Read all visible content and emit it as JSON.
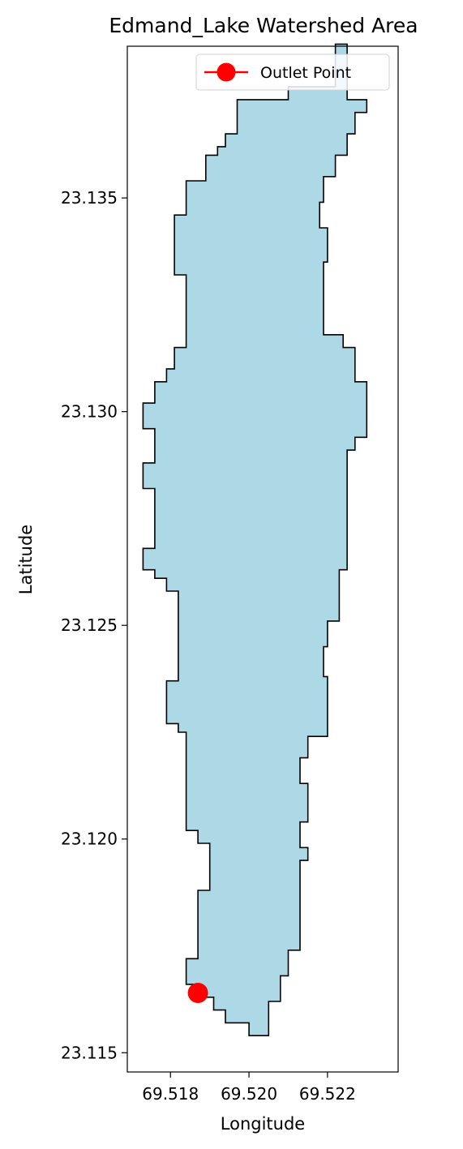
{
  "figure": {
    "title": "Edmand_Lake Watershed Area",
    "xlabel": "Longitude",
    "ylabel": "Latitude"
  },
  "legend": {
    "label": "Outlet Point",
    "placement": "upper right"
  },
  "colors": {
    "watershed_fill": "#add8e6",
    "watershed_edge": "#000000",
    "outlet_marker": "#ff0000",
    "legend_border": "#d0d0d0"
  },
  "map_data": {
    "type": "polygon-map",
    "xlim": [
      69.5169,
      69.5238
    ],
    "ylim": [
      23.11455,
      23.13855
    ],
    "xticks": [
      {
        "value": 69.518,
        "label": "69.518"
      },
      {
        "value": 69.52,
        "label": "69.520"
      },
      {
        "value": 69.522,
        "label": "69.522"
      }
    ],
    "yticks": [
      {
        "value": 23.115,
        "label": "23.115"
      },
      {
        "value": 23.12,
        "label": "23.120"
      },
      {
        "value": 23.125,
        "label": "23.125"
      },
      {
        "value": 23.13,
        "label": "23.130"
      },
      {
        "value": 23.135,
        "label": "23.135"
      }
    ],
    "outlet_point": {
      "lon": 69.5187,
      "lat": 23.1164
    },
    "watershed_boundary": [
      [
        69.5225,
        23.1386
      ],
      [
        69.5225,
        23.1373
      ],
      [
        69.523,
        23.1373
      ],
      [
        69.523,
        23.137
      ],
      [
        69.5227,
        23.137
      ],
      [
        69.5227,
        23.1365
      ],
      [
        69.5225,
        23.1365
      ],
      [
        69.5225,
        23.136
      ],
      [
        69.5222,
        23.136
      ],
      [
        69.5222,
        23.1355
      ],
      [
        69.5219,
        23.1355
      ],
      [
        69.5219,
        23.1349
      ],
      [
        69.5218,
        23.1349
      ],
      [
        69.5218,
        23.1343
      ],
      [
        69.522,
        23.1343
      ],
      [
        69.522,
        23.1335
      ],
      [
        69.5219,
        23.1335
      ],
      [
        69.5219,
        23.1318
      ],
      [
        69.5224,
        23.1318
      ],
      [
        69.5224,
        23.1315
      ],
      [
        69.5227,
        23.1315
      ],
      [
        69.5227,
        23.1307
      ],
      [
        69.523,
        23.1307
      ],
      [
        69.523,
        23.1294
      ],
      [
        69.5227,
        23.1294
      ],
      [
        69.5227,
        23.1291
      ],
      [
        69.5225,
        23.1291
      ],
      [
        69.5225,
        23.1263
      ],
      [
        69.5223,
        23.1263
      ],
      [
        69.5223,
        23.1251
      ],
      [
        69.522,
        23.1251
      ],
      [
        69.522,
        23.1245
      ],
      [
        69.5219,
        23.1245
      ],
      [
        69.5219,
        23.1238
      ],
      [
        69.522,
        23.1238
      ],
      [
        69.522,
        23.1224
      ],
      [
        69.5215,
        23.1224
      ],
      [
        69.5215,
        23.1219
      ],
      [
        69.5213,
        23.1219
      ],
      [
        69.5213,
        23.1213
      ],
      [
        69.5215,
        23.1213
      ],
      [
        69.5215,
        23.1204
      ],
      [
        69.5213,
        23.1204
      ],
      [
        69.5213,
        23.1198
      ],
      [
        69.5215,
        23.1198
      ],
      [
        69.5215,
        23.1195
      ],
      [
        69.5213,
        23.1195
      ],
      [
        69.5213,
        23.1174
      ],
      [
        69.521,
        23.1174
      ],
      [
        69.521,
        23.1168
      ],
      [
        69.5208,
        23.1168
      ],
      [
        69.5208,
        23.1162
      ],
      [
        69.5205,
        23.1162
      ],
      [
        69.5205,
        23.1154
      ],
      [
        69.52,
        23.1154
      ],
      [
        69.52,
        23.1157
      ],
      [
        69.5194,
        23.1157
      ],
      [
        69.5194,
        23.116
      ],
      [
        69.5191,
        23.116
      ],
      [
        69.5191,
        23.1163
      ],
      [
        69.5187,
        23.1163
      ],
      [
        69.5187,
        23.1166
      ],
      [
        69.5184,
        23.1166
      ],
      [
        69.5184,
        23.1172
      ],
      [
        69.5187,
        23.1172
      ],
      [
        69.5187,
        23.1188
      ],
      [
        69.519,
        23.1188
      ],
      [
        69.519,
        23.1199
      ],
      [
        69.5187,
        23.1199
      ],
      [
        69.5187,
        23.1202
      ],
      [
        69.5184,
        23.1202
      ],
      [
        69.5184,
        23.1225
      ],
      [
        69.5182,
        23.1225
      ],
      [
        69.5182,
        23.1227
      ],
      [
        69.5179,
        23.1227
      ],
      [
        69.5179,
        23.1237
      ],
      [
        69.5182,
        23.1237
      ],
      [
        69.5182,
        23.1258
      ],
      [
        69.5179,
        23.1258
      ],
      [
        69.5179,
        23.1261
      ],
      [
        69.5176,
        23.1261
      ],
      [
        69.5176,
        23.1263
      ],
      [
        69.5173,
        23.1263
      ],
      [
        69.5173,
        23.1268
      ],
      [
        69.5176,
        23.1268
      ],
      [
        69.5176,
        23.1282
      ],
      [
        69.5173,
        23.1282
      ],
      [
        69.5173,
        23.1288
      ],
      [
        69.5176,
        23.1288
      ],
      [
        69.5176,
        23.1296
      ],
      [
        69.5173,
        23.1296
      ],
      [
        69.5173,
        23.1302
      ],
      [
        69.5176,
        23.1302
      ],
      [
        69.5176,
        23.1307
      ],
      [
        69.5179,
        23.1307
      ],
      [
        69.5179,
        23.131
      ],
      [
        69.5181,
        23.131
      ],
      [
        69.5181,
        23.1315
      ],
      [
        69.5184,
        23.1315
      ],
      [
        69.5184,
        23.1332
      ],
      [
        69.5181,
        23.1332
      ],
      [
        69.5181,
        23.1346
      ],
      [
        69.5184,
        23.1346
      ],
      [
        69.5184,
        23.1354
      ],
      [
        69.5189,
        23.1354
      ],
      [
        69.5189,
        23.136
      ],
      [
        69.5192,
        23.136
      ],
      [
        69.5192,
        23.1362
      ],
      [
        69.5194,
        23.1362
      ],
      [
        69.5194,
        23.1365
      ],
      [
        69.5197,
        23.1365
      ],
      [
        69.5197,
        23.1373
      ],
      [
        69.521,
        23.1373
      ],
      [
        69.521,
        23.1376
      ],
      [
        69.5222,
        23.1376
      ],
      [
        69.5222,
        23.1386
      ]
    ]
  }
}
